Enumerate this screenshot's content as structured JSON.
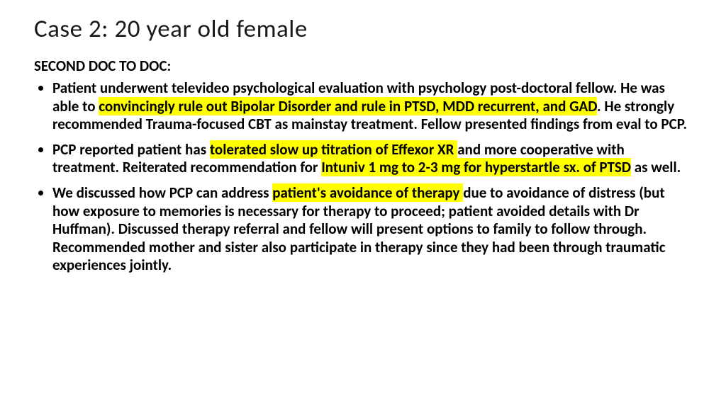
{
  "colors": {
    "background": "#ffffff",
    "text": "#000000",
    "title": "#1a1a1a",
    "highlight": "#ffff00"
  },
  "typography": {
    "family": "Calibri",
    "title_size_pt": 28,
    "body_size_pt": 17,
    "body_weight": 700,
    "title_weight": 400,
    "line_height": 1.22
  },
  "title": "Case 2:  20 year old female",
  "subhead": "SECOND DOC TO DOC:",
  "bullets": [
    {
      "runs": [
        {
          "t": "Patient underwent televideo psychological evaluation with psychology post-doctoral fellow. He was able to ",
          "hl": false
        },
        {
          "t": "convincingly rule out Bipolar Disorder and rule in PTSD, MDD recurrent, and GAD",
          "hl": true
        },
        {
          "t": ". He strongly recommended Trauma-focused CBT as mainstay treatment.  Fellow presented findings from eval to PCP.",
          "hl": false
        }
      ]
    },
    {
      "runs": [
        {
          "t": "PCP reported patient has ",
          "hl": false
        },
        {
          "t": "tolerated slow up titration of Effexor XR ",
          "hl": true
        },
        {
          "t": "and more cooperative with treatment. Reiterated recommendation for ",
          "hl": false
        },
        {
          "t": "Intuniv 1 mg to 2-3 mg for hyperstartle sx. of PTSD",
          "hl": true
        },
        {
          "t": " as well.",
          "hl": false
        }
      ]
    },
    {
      "runs": [
        {
          "t": "We discussed how PCP can address ",
          "hl": false
        },
        {
          "t": "patient's avoidance of therapy ",
          "hl": true
        },
        {
          "t": "due to avoidance of distress (but how exposure to memories is necessary for therapy to proceed; patient avoided details with Dr Huffman). Discussed therapy referral and fellow will present options to family to follow through. Recommended mother and sister also participate in therapy since they had been through traumatic experiences jointly.",
          "hl": false
        }
      ]
    }
  ]
}
